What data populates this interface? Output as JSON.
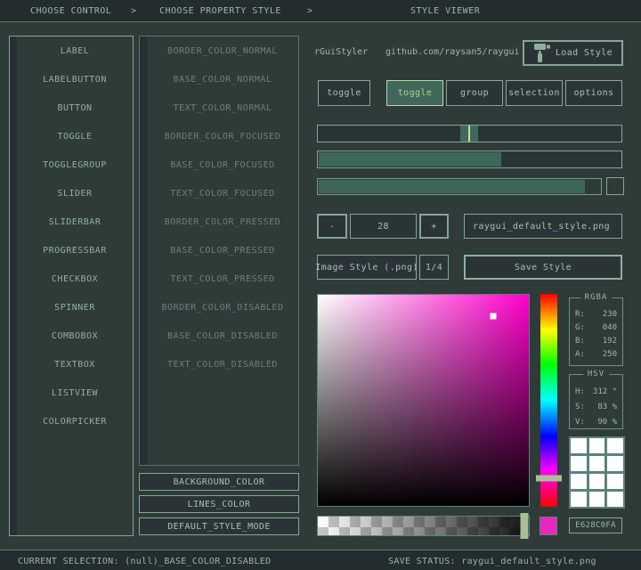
{
  "colors": {
    "background": "#2e3b38",
    "bar_background": "#232c2e",
    "accent_line": "#5d8164",
    "border_normal": "#87a597",
    "base_normal": "#2a3437",
    "text_normal": "#9db9ab",
    "text_disabled": "#6f7f7e",
    "base_pressed": "#3f675b",
    "border_pressed": "#c2d4a0",
    "text_pressed": "#b8cf8e",
    "fill_green": "#3e675a",
    "handle_sage": "#a9c095"
  },
  "topbar": {
    "separator": ">",
    "steps": [
      "CHOOSE CONTROL",
      "CHOOSE PROPERTY STYLE",
      "STYLE VIEWER"
    ]
  },
  "controls_list": [
    "LABEL",
    "LABELBUTTON",
    "BUTTON",
    "TOGGLE",
    "TOGGLEGROUP",
    "SLIDER",
    "SLIDERBAR",
    "PROGRESSBAR",
    "CHECKBOX",
    "SPINNER",
    "COMBOBOX",
    "TEXTBOX",
    "LISTVIEW",
    "COLORPICKER"
  ],
  "properties_list": [
    "BORDER_COLOR_NORMAL",
    "BASE_COLOR_NORMAL",
    "TEXT_COLOR_NORMAL",
    "BORDER_COLOR_FOCUSED",
    "BASE_COLOR_FOCUSED",
    "TEXT_COLOR_FOCUSED",
    "BORDER_COLOR_PRESSED",
    "BASE_COLOR_PRESSED",
    "TEXT_COLOR_PRESSED",
    "BORDER_COLOR_DISABLED",
    "BASE_COLOR_DISABLED",
    "TEXT_COLOR_DISABLED"
  ],
  "extra_buttons": {
    "background_color": "BACKGROUND_COLOR",
    "lines_color": "LINES_COLOR",
    "default_style_mode": "DEFAULT_STYLE_MODE"
  },
  "viewer": {
    "brand": "rGuiStyler",
    "repo": "github.com/raysan5/raygui",
    "load_style_label": "Load Style",
    "standalone_toggle_label": "toggle",
    "toggle_group": [
      {
        "label": "toggle",
        "active": true
      },
      {
        "label": "group",
        "active": false
      },
      {
        "label": "selection",
        "active": false
      },
      {
        "label": "options",
        "active": false
      }
    ],
    "slider_pos_pct": 47,
    "sliderbar_fill_pct": 60,
    "progressbar_fill_pct": 94,
    "spinner": {
      "minus": "-",
      "value": "28",
      "plus": "+"
    },
    "filename_input": "raygui_default_style.png",
    "image_style_button": "Image Style (.png)",
    "ratio_button": "1/4",
    "save_style_button": "Save Style"
  },
  "color_panel": {
    "rgba": {
      "title": "RGBA",
      "rows": [
        {
          "label": "R:",
          "value": "230"
        },
        {
          "label": "G:",
          "value": "040"
        },
        {
          "label": "B:",
          "value": "192"
        },
        {
          "label": "A:",
          "value": "250"
        }
      ]
    },
    "hsv": {
      "title": "HSV",
      "rows": [
        {
          "label": "H:",
          "value": "312 °"
        },
        {
          "label": "S:",
          "value": "83 %"
        },
        {
          "label": "V:",
          "value": "90 %"
        }
      ]
    },
    "hex_value": "E628C0FA",
    "hue_deg": 312,
    "sv_cursor_s_pct": 83,
    "sv_cursor_v_pct": 90,
    "alpha_value": 250,
    "swatch_color": "#E628C0",
    "palette": {
      "rows": 4,
      "cols": 3,
      "cell_color": "#fdfefe"
    }
  },
  "statusbar": {
    "left": "CURRENT SELECTION: (null)_BASE_COLOR_DISABLED",
    "right": "SAVE STATUS: raygui_default_style.png"
  }
}
